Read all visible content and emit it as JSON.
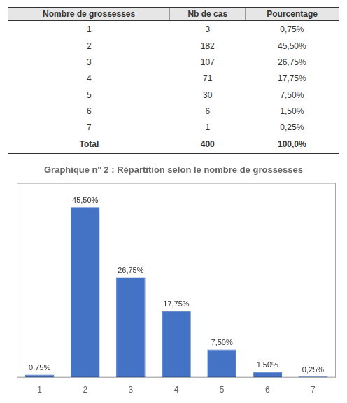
{
  "chart_data": [
    {
      "type": "table",
      "headers": [
        "Nombre de grossesses",
        "Nb de cas",
        "Pourcentage"
      ],
      "rows": [
        [
          "1",
          "3",
          "0,75%"
        ],
        [
          "2",
          "182",
          "45,50%"
        ],
        [
          "3",
          "107",
          "26,75%"
        ],
        [
          "4",
          "71",
          "17,75%"
        ],
        [
          "5",
          "30",
          "7,50%"
        ],
        [
          "6",
          "6",
          "1,50%"
        ],
        [
          "7",
          "1",
          "0,25%"
        ],
        [
          "Total",
          "400",
          "100,0%"
        ]
      ]
    },
    {
      "type": "bar",
      "title": "Graphique n° 2 : Répartition selon le nombre de grossesses",
      "categories": [
        1,
        2,
        3,
        4,
        5,
        6,
        7
      ],
      "values": [
        0.75,
        45.5,
        26.75,
        17.75,
        7.5,
        1.5,
        0.25
      ],
      "value_labels": [
        "0,75%",
        "45,50%",
        "26,75%",
        "17,75%",
        "7,50%",
        "1,50%",
        "0,25%"
      ],
      "data_labels": true,
      "color": "#4472C4",
      "ylim": [
        0,
        52
      ],
      "tick_labels": "x",
      "grid": false
    }
  ]
}
